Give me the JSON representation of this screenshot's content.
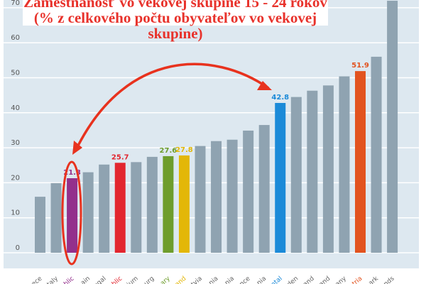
{
  "chart_data": {
    "type": "bar",
    "title": "Zamestnanosť vo vekovej skupine 15 - 24 rokov",
    "subtitle": "(% z celkového počtu obyvateľov vo vekovej skupine)",
    "xlabel": "",
    "ylabel": "",
    "ylim": [
      0,
      70
    ],
    "yticks": [
      0,
      10,
      20,
      30,
      40,
      50,
      60,
      70
    ],
    "grid": true,
    "categories": [
      "ece",
      "taly",
      "blic",
      "ain",
      "ugal",
      "blic",
      "ium",
      "urg",
      "ary",
      "and",
      "tvia",
      "nia",
      "nia",
      "nce",
      "nia",
      "otal",
      "den",
      "and",
      "and",
      "any",
      "tria",
      "ark",
      "nds"
    ],
    "values": [
      16.0,
      19.9,
      21.3,
      23.0,
      25.2,
      25.7,
      25.9,
      27.4,
      27.6,
      27.8,
      30.5,
      31.9,
      32.3,
      34.9,
      36.5,
      42.8,
      44.5,
      46.3,
      47.8,
      50.4,
      51.9,
      56.0,
      72.0
    ],
    "data_labels": {
      "2": "21.3",
      "5": "25.7",
      "8": "27.6",
      "9": "27.8",
      "15": "42.8",
      "20": "51.9"
    },
    "colors": {
      "default": "#8fa3b1",
      "2": "#93308c",
      "5": "#e2262f",
      "8": "#6e9d2c",
      "9": "#e3b708",
      "15": "#1b8ad8",
      "20": "#e2531f"
    },
    "background": "#dde8f0",
    "annotation_color": "#e8321e"
  }
}
